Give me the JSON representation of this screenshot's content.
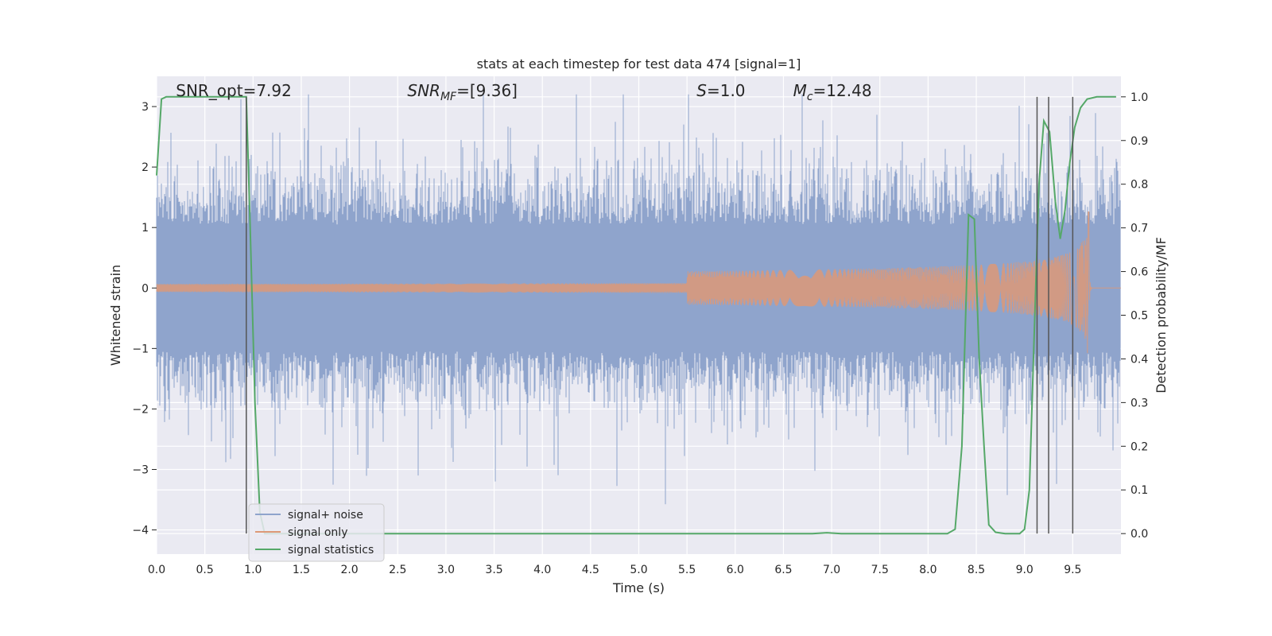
{
  "chart_data": {
    "type": "line",
    "title": "stats at each timestep for test data 474 [signal=1]",
    "xlabel": "Time (s)",
    "ylabel_left": "Whitened strain",
    "ylabel_right": "Detection probability/MF",
    "xlim": [
      0.0,
      10.0
    ],
    "ylim_left": [
      -4.4,
      3.5
    ],
    "ylim_right": [
      -0.047,
      1.047
    ],
    "x_ticks": [
      "0.0",
      "0.5",
      "1.0",
      "1.5",
      "2.0",
      "2.5",
      "3.0",
      "3.5",
      "4.0",
      "4.5",
      "5.0",
      "5.5",
      "6.0",
      "6.5",
      "7.0",
      "7.5",
      "8.0",
      "8.5",
      "9.0",
      "9.5"
    ],
    "y_ticks_left": [
      "−4",
      "−3",
      "−2",
      "−1",
      "0",
      "1",
      "2",
      "3"
    ],
    "y_ticks_right": [
      "0.0",
      "0.1",
      "0.2",
      "0.3",
      "0.4",
      "0.5",
      "0.6",
      "0.7",
      "0.8",
      "0.9",
      "1.0"
    ],
    "grid": true,
    "legend_position": "lower-left",
    "colors": {
      "noise": "#8fa4cc",
      "signal": "#dd9977",
      "stats": "#55a868",
      "vline": "#555555",
      "background": "#eaeaf2",
      "grid": "#ffffff"
    },
    "annotations": [
      {
        "label": "SNR_opt=7.92",
        "x": 0.2
      },
      {
        "label_main": "SNR",
        "label_sub": "MF",
        "label_rest": "=[9.36]",
        "x": 2.6
      },
      {
        "label_main": "S",
        "label_rest": "=1.0",
        "x": 5.6
      },
      {
        "label_main": "M",
        "label_sub": "c",
        "label_rest": "=12.48",
        "x": 6.6
      }
    ],
    "series": [
      {
        "name": "signal+ noise",
        "axis": "left",
        "description_range": [
          -4.0,
          3.2
        ],
        "typical_amplitude": 1.4
      },
      {
        "name": "signal only",
        "axis": "left",
        "chirp_start": 5.5,
        "chirp_peak_time": 9.67,
        "peak_amplitude": 1.4
      },
      {
        "name": "signal statistics",
        "axis": "right",
        "points": [
          [
            0.0,
            0.82
          ],
          [
            0.05,
            0.995
          ],
          [
            0.1,
            1.0
          ],
          [
            0.5,
            1.0
          ],
          [
            0.93,
            1.0
          ],
          [
            0.97,
            0.7
          ],
          [
            1.02,
            0.3
          ],
          [
            1.07,
            0.05
          ],
          [
            1.12,
            0.0
          ],
          [
            2.0,
            0.0
          ],
          [
            4.0,
            0.0
          ],
          [
            6.0,
            0.0
          ],
          [
            6.8,
            0.0
          ],
          [
            6.95,
            0.002
          ],
          [
            7.1,
            0.0
          ],
          [
            8.2,
            0.0
          ],
          [
            8.28,
            0.01
          ],
          [
            8.35,
            0.2
          ],
          [
            8.42,
            0.73
          ],
          [
            8.48,
            0.72
          ],
          [
            8.53,
            0.4
          ],
          [
            8.58,
            0.2
          ],
          [
            8.63,
            0.02
          ],
          [
            8.7,
            0.003
          ],
          [
            8.8,
            0.0
          ],
          [
            8.95,
            0.0
          ],
          [
            9.0,
            0.01
          ],
          [
            9.05,
            0.1
          ],
          [
            9.1,
            0.45
          ],
          [
            9.15,
            0.8
          ],
          [
            9.2,
            0.945
          ],
          [
            9.26,
            0.92
          ],
          [
            9.32,
            0.76
          ],
          [
            9.37,
            0.675
          ],
          [
            9.42,
            0.74
          ],
          [
            9.47,
            0.85
          ],
          [
            9.52,
            0.93
          ],
          [
            9.58,
            0.975
          ],
          [
            9.65,
            0.995
          ],
          [
            9.75,
            1.0
          ],
          [
            9.95,
            1.0
          ]
        ]
      }
    ],
    "vertical_lines": [
      0.93,
      9.13,
      9.25,
      9.5
    ]
  }
}
